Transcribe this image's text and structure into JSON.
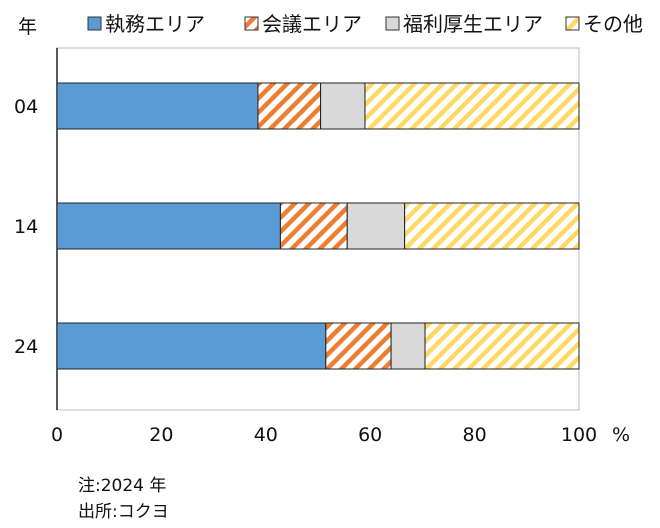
{
  "chart_data": {
    "type": "bar",
    "orientation": "horizontal",
    "stacked": true,
    "categories": [
      "04",
      "14",
      "24"
    ],
    "series": [
      {
        "name": "執務エリア",
        "values": [
          38.5,
          42.8,
          51.5
        ],
        "color": "#5b9bd5",
        "pattern": "solid"
      },
      {
        "name": "会議エリア",
        "values": [
          12.0,
          12.8,
          12.5
        ],
        "color": "#ed7d31",
        "pattern": "hatch"
      },
      {
        "name": "福利厚生エリア",
        "values": [
          8.5,
          11.0,
          6.5
        ],
        "color": "#d9d9d9",
        "pattern": "solid"
      },
      {
        "name": "その他",
        "values": [
          41.0,
          33.4,
          29.5
        ],
        "color": "#ffd966",
        "pattern": "hatch"
      }
    ],
    "xlim": [
      0,
      100
    ],
    "xticks": [
      0,
      20,
      40,
      60,
      80,
      100
    ],
    "xunit": "%",
    "ylabel": "年",
    "legend_position": "top",
    "grid": false
  },
  "notes": {
    "line1": "注:2024 年",
    "line2": "出所:コクヨ"
  }
}
